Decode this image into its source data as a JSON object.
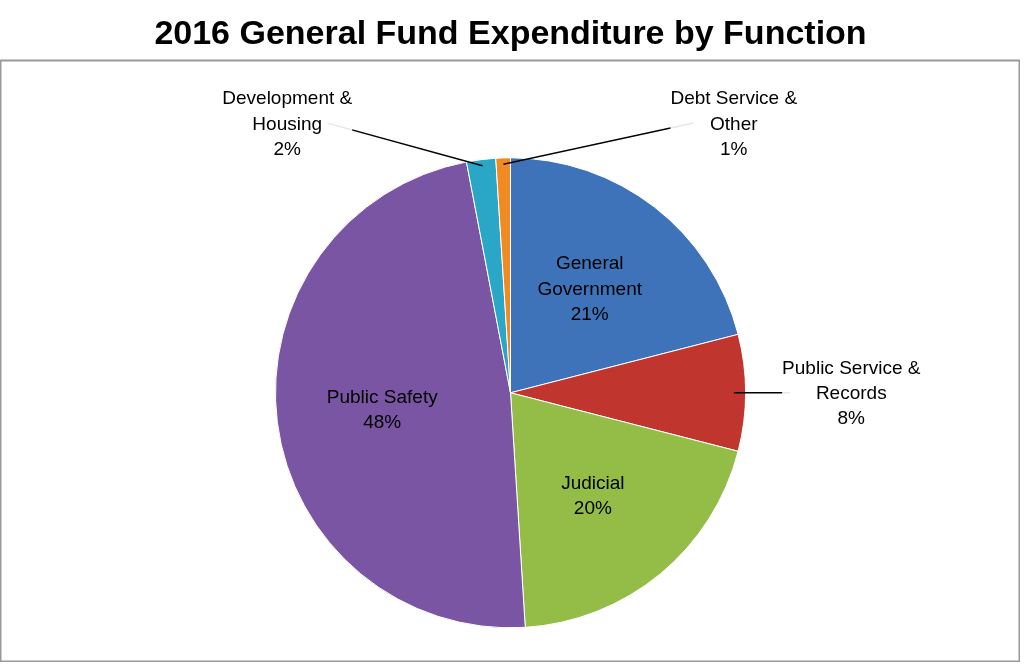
{
  "chart_data": {
    "type": "pie",
    "title": "2016 General Fund Expenditure by Function",
    "categories": [
      "General Government",
      "Public Service & Records",
      "Judicial",
      "Public Safety",
      "Development & Housing",
      "Debt Service & Other"
    ],
    "values": [
      21,
      8,
      20,
      48,
      2,
      1
    ],
    "value_labels": [
      "21%",
      "8%",
      "20%",
      "48%",
      "2%",
      "1%"
    ],
    "colors": [
      "#3f73b9",
      "#c0362f",
      "#93bd47",
      "#7a55a3",
      "#2aa6c6",
      "#f08a22"
    ]
  }
}
